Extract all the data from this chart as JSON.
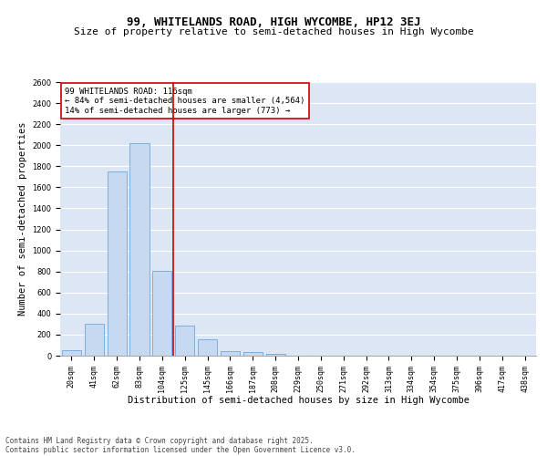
{
  "title": "99, WHITELANDS ROAD, HIGH WYCOMBE, HP12 3EJ",
  "subtitle": "Size of property relative to semi-detached houses in High Wycombe",
  "xlabel": "Distribution of semi-detached houses by size in High Wycombe",
  "ylabel": "Number of semi-detached properties",
  "categories": [
    "20sqm",
    "41sqm",
    "62sqm",
    "83sqm",
    "104sqm",
    "125sqm",
    "145sqm",
    "166sqm",
    "187sqm",
    "208sqm",
    "229sqm",
    "250sqm",
    "271sqm",
    "292sqm",
    "313sqm",
    "334sqm",
    "354sqm",
    "375sqm",
    "396sqm",
    "417sqm",
    "438sqm"
  ],
  "values": [
    50,
    300,
    1750,
    2020,
    810,
    290,
    160,
    45,
    35,
    20,
    0,
    0,
    0,
    0,
    0,
    0,
    0,
    0,
    0,
    0,
    0
  ],
  "bar_color": "#c6d9f0",
  "bar_edge_color": "#5b9bd5",
  "vline_x": 4.5,
  "vline_color": "#cc0000",
  "annotation_title": "99 WHITELANDS ROAD: 116sqm",
  "annotation_line1": "← 84% of semi-detached houses are smaller (4,564)",
  "annotation_line2": "14% of semi-detached houses are larger (773) →",
  "annotation_box_color": "#cc0000",
  "ylim": [
    0,
    2600
  ],
  "yticks": [
    0,
    200,
    400,
    600,
    800,
    1000,
    1200,
    1400,
    1600,
    1800,
    2000,
    2200,
    2400,
    2600
  ],
  "background_color": "#dce6f5",
  "grid_color": "#ffffff",
  "footer_line1": "Contains HM Land Registry data © Crown copyright and database right 2025.",
  "footer_line2": "Contains public sector information licensed under the Open Government Licence v3.0.",
  "title_fontsize": 9,
  "subtitle_fontsize": 8,
  "tick_fontsize": 6,
  "ylabel_fontsize": 7.5,
  "xlabel_fontsize": 7.5,
  "annotation_fontsize": 6.5,
  "footer_fontsize": 5.5
}
